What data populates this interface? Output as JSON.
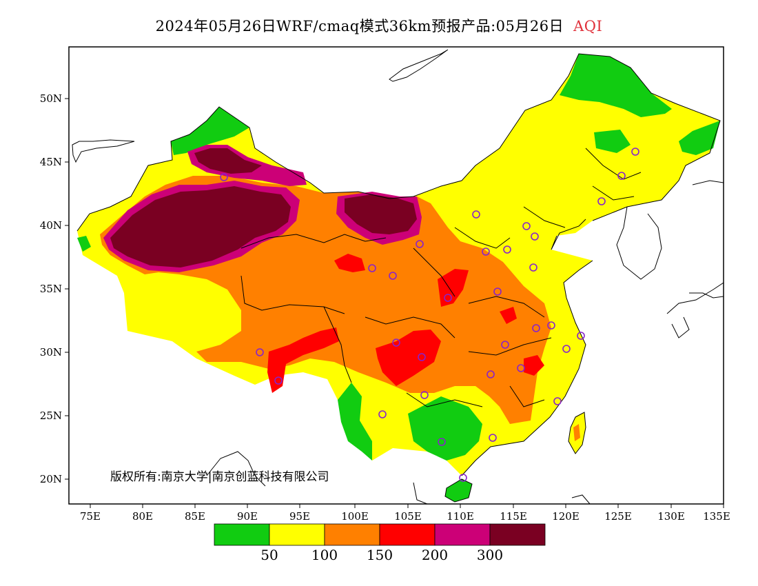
{
  "title": {
    "main": "2024年05月26日WRF/cmaq模式36km预报产品:05月26日",
    "variable": "AQI",
    "variable_color": "#e0303a"
  },
  "axes": {
    "lat_ticks": [
      "50N",
      "45N",
      "40N",
      "35N",
      "30N",
      "25N",
      "20N"
    ],
    "lon_ticks": [
      "75E",
      "80E",
      "85E",
      "90E",
      "95E",
      "100E",
      "105E",
      "110E",
      "115E",
      "120E",
      "125E",
      "130E",
      "135E"
    ]
  },
  "copyright": "版权所有:南京大学|南京创蓝科技有限公司",
  "legend": {
    "colors": [
      "#11cc11",
      "#ffff00",
      "#ff8000",
      "#ff0000",
      "#cc0077",
      "#7a0022"
    ],
    "labels": [
      "50",
      "100",
      "150",
      "200",
      "300"
    ]
  },
  "colors": {
    "good": "#11cc11",
    "moderate": "#ffff00",
    "light": "#ff8000",
    "medium": "#ff0000",
    "heavy": "#cc0077",
    "severe": "#7a0022",
    "station": "#8822cc"
  },
  "icons": [
    "station-marker-icon"
  ]
}
